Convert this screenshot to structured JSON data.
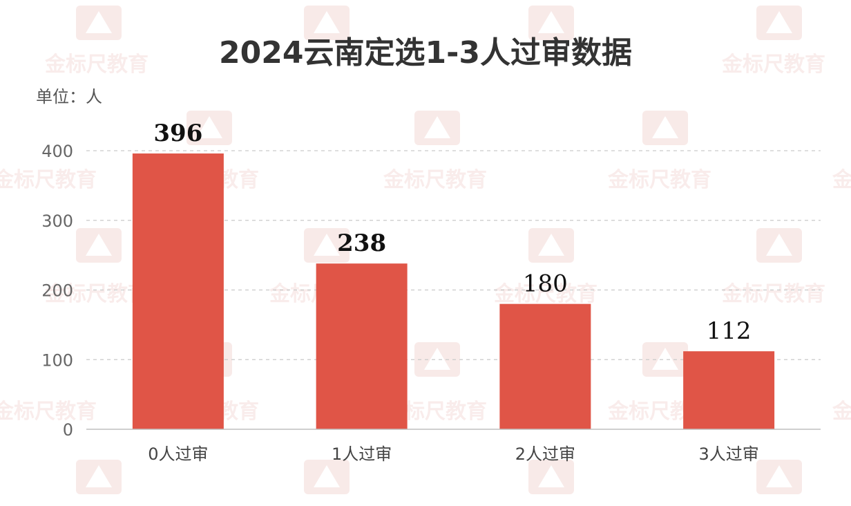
{
  "chart_data": {
    "type": "bar",
    "title": "2024云南定选1-3人过审数据",
    "unit_label": "单位：人",
    "categories": [
      "0人过审",
      "1人过审",
      "2人过审",
      "3人过审"
    ],
    "values": [
      396,
      238,
      180,
      112
    ],
    "data_labels": [
      "396",
      "238",
      "180",
      "112"
    ],
    "ylim": [
      0,
      400
    ],
    "yticks": [
      0,
      100,
      200,
      300,
      400
    ],
    "grid": true,
    "bar_color": "#e05547",
    "grid_color": "#c9c9c9",
    "axis_color": "#bfbfbf",
    "tick_label_color": "#666666",
    "watermark_text": "金标尺教育"
  }
}
